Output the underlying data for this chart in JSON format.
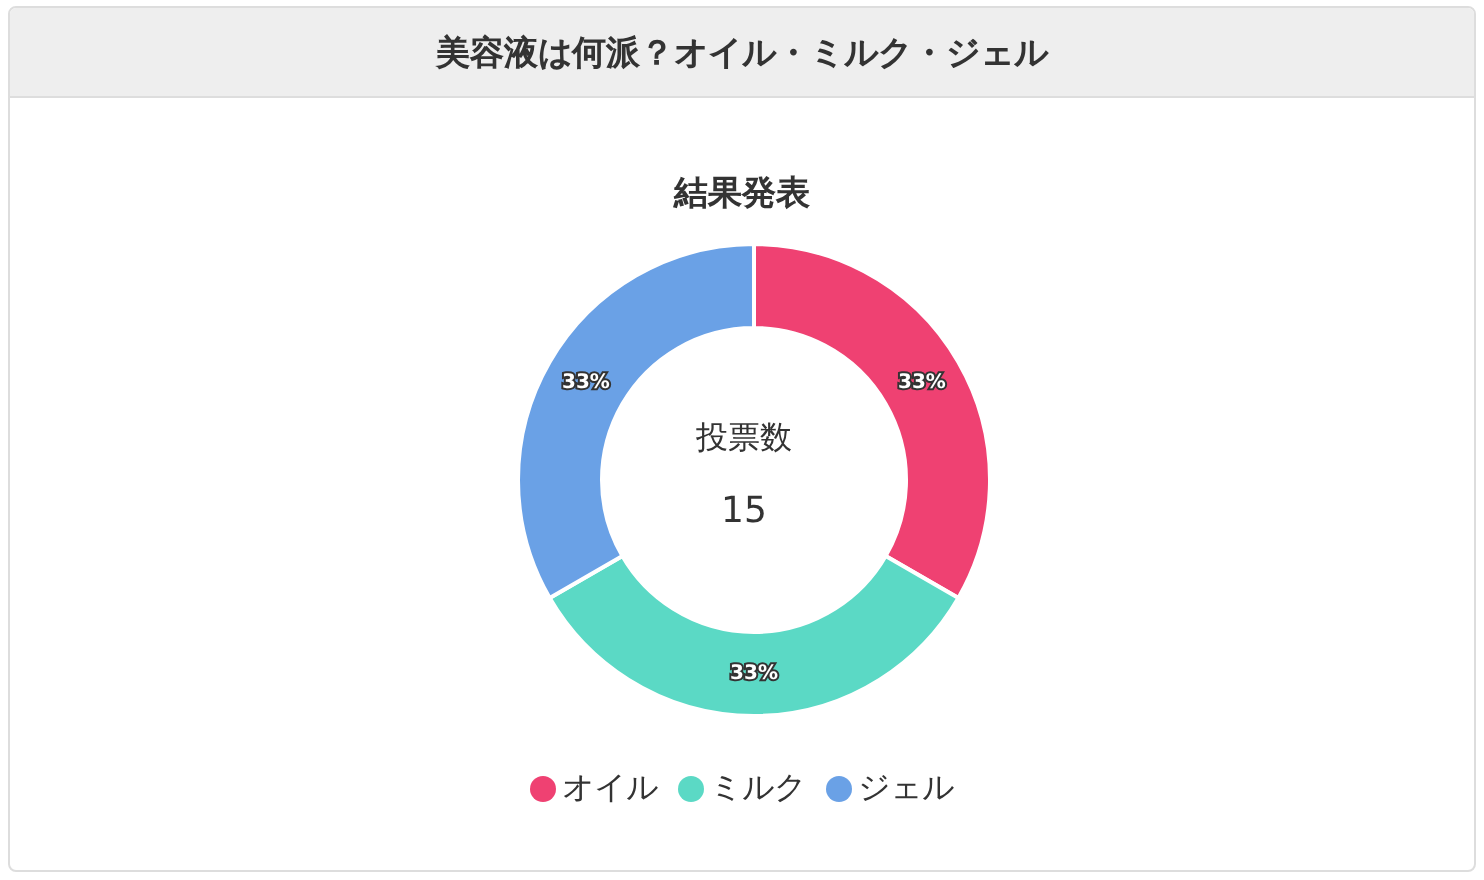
{
  "chart_data": {
    "type": "donut",
    "title": "美容液は何派？オイル・ミルク・ジェル",
    "subtitle": "結果発表",
    "categories": [
      "オイル",
      "ミルク",
      "ジェル"
    ],
    "values": [
      33.33,
      33.33,
      33.34
    ],
    "colors": [
      "#ef4172",
      "#5bd9c5",
      "#6aa1e6"
    ],
    "value_labels": [
      "33%",
      "33%",
      "33%"
    ],
    "annotations": [
      "投票数",
      "15"
    ],
    "legend": "bottom"
  }
}
